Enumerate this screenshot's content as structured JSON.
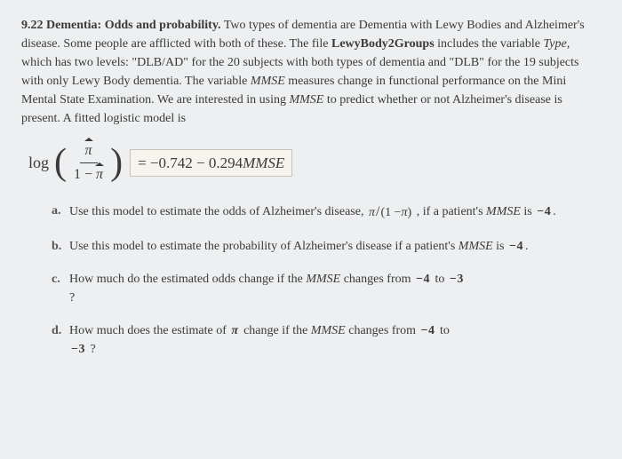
{
  "problem": {
    "number": "9.22",
    "title": "Dementia: Odds and probability.",
    "body": "Two types of dementia are Dementia with Lewy Bodies and Alzheimer's disease. Some people are afflicted with both of these. The file LewyBody2Groups includes the variable Type, which has two levels: \"DLB/AD\" for the 20 subjects with both types of dementia and \"DLB\" for the 19 subjects with only Lewy Body dementia. The variable MMSE measures change in functional performance on the Mini Mental State Examination. We are interested in using MMSE to predict whether or not Alzheimer's disease is present. A fitted logistic model is"
  },
  "formula": {
    "lhs_func": "log",
    "frac_top": "π̂",
    "frac_bot": "1 − π̂",
    "rhs": "= −0.742 − 0.294MMSE"
  },
  "parts": {
    "a": {
      "text_before": "Use this model to estimate the odds of Alzheimer's disease, ",
      "odds_expr": "π/(1 − π)",
      "text_mid": ", if a patient's MMSE is ",
      "value": "−4",
      "text_after": "."
    },
    "b": {
      "text_before": "Use this model to estimate the probability of Alzheimer's disease if a patient's MMSE is ",
      "value": "−4",
      "text_after": "."
    },
    "c": {
      "text_before": "How much do the estimated odds change if the MMSE changes from ",
      "from": "−4",
      "to_word": " to ",
      "to": "−3",
      "text_after": "?"
    },
    "d": {
      "text_before": "How much does the estimate of ",
      "pi": "π",
      "text_mid": " change if the MMSE changes from ",
      "from": "−4",
      "to_word": " to ",
      "to": "−3",
      "text_after": "?"
    }
  },
  "style": {
    "background": "#eeeff0",
    "text_color": "#3a3a3a",
    "body_fontsize": 14,
    "formula_fontsize": 18,
    "rhs_bg": "#f6f4ec",
    "rhs_border": "#c8c4b4"
  }
}
